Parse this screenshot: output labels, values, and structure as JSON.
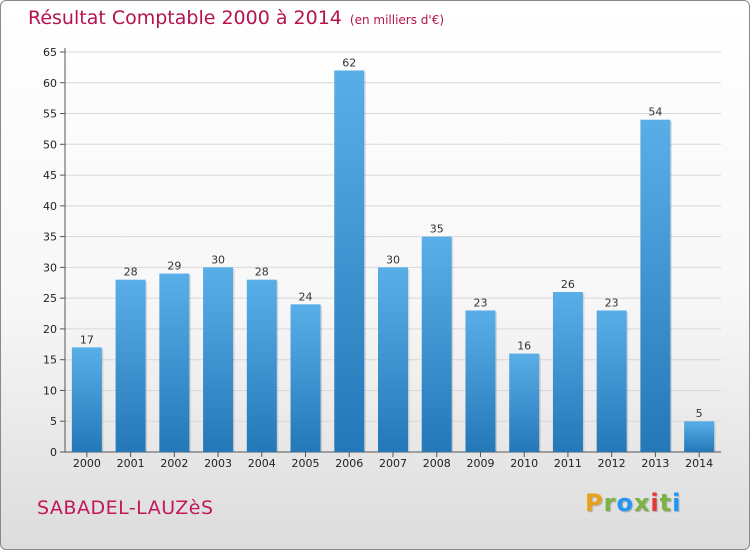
{
  "header": {
    "title": "Résultat Comptable 2000 à 2014",
    "unit": "(en milliers d'€)"
  },
  "footer": {
    "place": "SABADEL-LAUZèS",
    "logo_letters": [
      "P",
      "r",
      "o",
      "x",
      "i",
      "t",
      "i"
    ],
    "logo_colors": [
      "#e8a21a",
      "#7cb342",
      "#2196f3",
      "#7cb342",
      "#e53935",
      "#7cb342",
      "#2196f3"
    ]
  },
  "colors": {
    "bar_light": "#5aaee8",
    "bar_dark": "#2478b8",
    "title": "#b5134f",
    "grid": "#d8d8d8"
  },
  "chart_data": {
    "type": "bar",
    "categories": [
      "2000",
      "2001",
      "2002",
      "2003",
      "2004",
      "2005",
      "2006",
      "2007",
      "2008",
      "2009",
      "2010",
      "2011",
      "2012",
      "2013",
      "2014"
    ],
    "values": [
      17,
      28,
      29,
      30,
      28,
      24,
      62,
      30,
      35,
      23,
      16,
      26,
      23,
      54,
      5
    ],
    "yticks": [
      0,
      5,
      10,
      15,
      20,
      25,
      30,
      35,
      40,
      45,
      50,
      55,
      60,
      65
    ],
    "ylim": [
      0,
      65
    ],
    "grid": true,
    "data_labels": true
  }
}
